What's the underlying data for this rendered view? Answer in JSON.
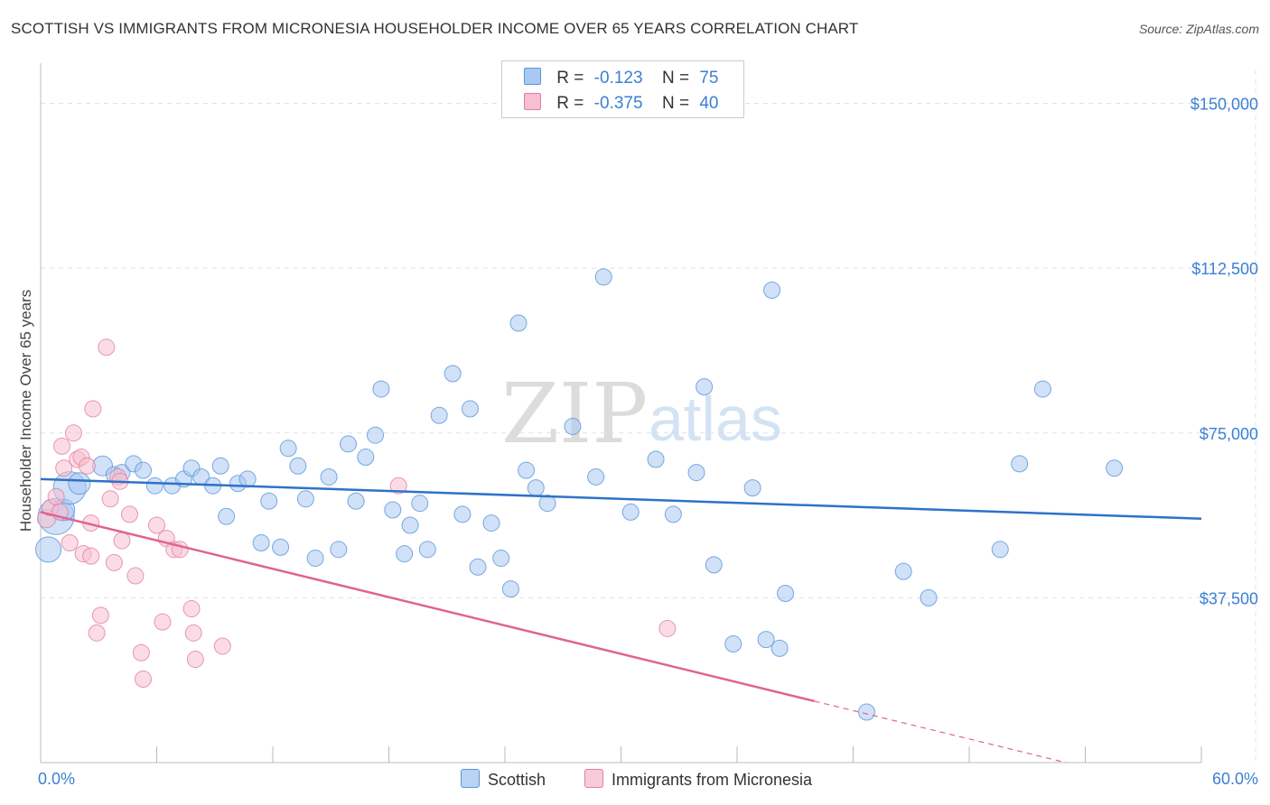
{
  "header": {
    "title": "SCOTTISH VS IMMIGRANTS FROM MICRONESIA HOUSEHOLDER INCOME OVER 65 YEARS CORRELATION CHART",
    "source": "Source: ZipAtlas.com"
  },
  "legend": {
    "r_label": "R =",
    "n_label": "N =",
    "rows": [
      {
        "series": "Scottish",
        "r": "-0.123",
        "n": "75",
        "color": "#a9c9f2",
        "border": "#5a95d9"
      },
      {
        "series": "Immigrants from Micronesia",
        "r": "-0.375",
        "n": "40",
        "color": "#f7bfd0",
        "border": "#e07fa0"
      }
    ]
  },
  "watermark": {
    "zip": "ZIP",
    "atlas": "atlas"
  },
  "chart_data": {
    "type": "scatter",
    "title": "SCOTTISH VS IMMIGRANTS FROM MICRONESIA HOUSEHOLDER INCOME OVER 65 YEARS CORRELATION CHART",
    "xlabel": "",
    "ylabel": "Householder Income Over 65 years",
    "xlim": [
      0,
      60
    ],
    "ylim": [
      0,
      157500
    ],
    "x_tick_labels": [
      "0.0%",
      "60.0%"
    ],
    "y_ticks": [
      37500,
      75000,
      112500,
      150000
    ],
    "y_tick_labels": [
      "$37,500",
      "$75,000",
      "$112,500",
      "$150,000"
    ],
    "series": [
      {
        "name": "Scottish",
        "color": "#a9c9f2",
        "stroke": "#5a95d9",
        "line_color": "#2e72c8",
        "trend": {
          "x": [
            0,
            60
          ],
          "y": [
            64500,
            55500
          ],
          "dashed_from": null
        },
        "points": [
          [
            0.4,
            48500,
            14
          ],
          [
            0.8,
            56000,
            20
          ],
          [
            1.2,
            57500,
            12
          ],
          [
            1.5,
            62500,
            18
          ],
          [
            2.0,
            63500,
            12
          ],
          [
            3.2,
            67500,
            11
          ],
          [
            3.8,
            65500,
            9
          ],
          [
            4.2,
            66000,
            9
          ],
          [
            4.8,
            68000,
            9
          ],
          [
            5.3,
            66500,
            9
          ],
          [
            5.9,
            63000,
            9
          ],
          [
            6.8,
            63000,
            9
          ],
          [
            7.4,
            64500,
            9
          ],
          [
            7.8,
            67000,
            9
          ],
          [
            8.3,
            65000,
            9
          ],
          [
            8.9,
            63000,
            9
          ],
          [
            9.3,
            67500,
            9
          ],
          [
            9.6,
            56000,
            9
          ],
          [
            10.2,
            63500,
            9
          ],
          [
            10.7,
            64500,
            9
          ],
          [
            11.4,
            50000,
            9
          ],
          [
            11.8,
            59500,
            9
          ],
          [
            12.4,
            49000,
            9
          ],
          [
            12.8,
            71500,
            9
          ],
          [
            13.3,
            67500,
            9
          ],
          [
            13.7,
            60000,
            9
          ],
          [
            14.2,
            46500,
            9
          ],
          [
            14.9,
            65000,
            9
          ],
          [
            15.4,
            48500,
            9
          ],
          [
            15.9,
            72500,
            9
          ],
          [
            16.3,
            59500,
            9
          ],
          [
            16.8,
            69500,
            9
          ],
          [
            17.3,
            74500,
            9
          ],
          [
            17.6,
            85000,
            9
          ],
          [
            18.2,
            57500,
            9
          ],
          [
            18.8,
            47500,
            9
          ],
          [
            19.1,
            54000,
            9
          ],
          [
            19.6,
            59000,
            9
          ],
          [
            20.0,
            48500,
            9
          ],
          [
            20.6,
            79000,
            9
          ],
          [
            21.3,
            88500,
            9
          ],
          [
            21.8,
            56500,
            9
          ],
          [
            22.2,
            80500,
            9
          ],
          [
            22.6,
            44500,
            9
          ],
          [
            23.3,
            54500,
            9
          ],
          [
            23.8,
            46500,
            9
          ],
          [
            24.3,
            39500,
            9
          ],
          [
            24.7,
            100000,
            9
          ],
          [
            25.1,
            66500,
            9
          ],
          [
            25.6,
            62500,
            9
          ],
          [
            26.2,
            59000,
            9
          ],
          [
            27.5,
            76500,
            9
          ],
          [
            28.7,
            65000,
            9
          ],
          [
            29.1,
            110500,
            9
          ],
          [
            30.5,
            57000,
            9
          ],
          [
            31.8,
            69000,
            9
          ],
          [
            32.7,
            56500,
            9
          ],
          [
            33.9,
            66000,
            9
          ],
          [
            34.3,
            85500,
            9
          ],
          [
            34.8,
            45000,
            9
          ],
          [
            35.8,
            27000,
            9
          ],
          [
            36.8,
            62500,
            9
          ],
          [
            37.5,
            28000,
            9
          ],
          [
            38.2,
            26000,
            9
          ],
          [
            38.5,
            38500,
            9
          ],
          [
            37.8,
            107500,
            9
          ],
          [
            42.7,
            11500,
            9
          ],
          [
            44.6,
            43500,
            9
          ],
          [
            45.9,
            37500,
            9
          ],
          [
            49.6,
            48500,
            9
          ],
          [
            50.6,
            68000,
            9
          ],
          [
            51.8,
            85000,
            9
          ],
          [
            55.5,
            67000,
            9
          ]
        ]
      },
      {
        "name": "Immigrants from Micronesia",
        "color": "#f7bfd0",
        "stroke": "#e07fa0",
        "line_color": "#e0648f",
        "trend": {
          "x": [
            0,
            53
          ],
          "y": [
            57000,
            0
          ],
          "dashed_from": 40
        },
        "points": [
          [
            0.3,
            55500,
            10
          ],
          [
            0.5,
            58000,
            9
          ],
          [
            0.8,
            60500,
            9
          ],
          [
            1.0,
            57000,
            9
          ],
          [
            1.1,
            72000,
            9
          ],
          [
            1.2,
            67000,
            9
          ],
          [
            1.5,
            50000,
            9
          ],
          [
            1.7,
            75000,
            9
          ],
          [
            1.9,
            69000,
            9
          ],
          [
            2.1,
            69500,
            9
          ],
          [
            2.4,
            67500,
            9
          ],
          [
            2.2,
            47500,
            9
          ],
          [
            2.6,
            54500,
            9
          ],
          [
            2.7,
            80500,
            9
          ],
          [
            2.6,
            47000,
            9
          ],
          [
            3.1,
            33500,
            9
          ],
          [
            2.9,
            29500,
            9
          ],
          [
            3.4,
            94500,
            9
          ],
          [
            3.6,
            60000,
            9
          ],
          [
            3.8,
            45500,
            9
          ],
          [
            4.0,
            65000,
            9
          ],
          [
            4.1,
            64000,
            9
          ],
          [
            4.2,
            50500,
            9
          ],
          [
            4.6,
            56500,
            9
          ],
          [
            4.9,
            42500,
            9
          ],
          [
            5.2,
            25000,
            9
          ],
          [
            5.3,
            19000,
            9
          ],
          [
            6.0,
            54000,
            9
          ],
          [
            6.3,
            32000,
            9
          ],
          [
            6.5,
            51000,
            9
          ],
          [
            6.9,
            48500,
            9
          ],
          [
            7.2,
            48500,
            9
          ],
          [
            7.8,
            35000,
            9
          ],
          [
            7.9,
            29500,
            9
          ],
          [
            8.0,
            23500,
            9
          ],
          [
            9.4,
            26500,
            9
          ],
          [
            18.5,
            63000,
            9
          ],
          [
            32.4,
            30500,
            9
          ]
        ]
      }
    ]
  }
}
